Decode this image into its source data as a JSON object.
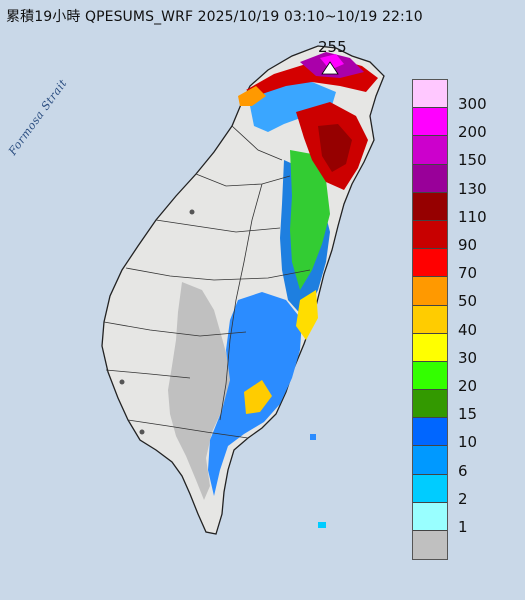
{
  "title": "累積19小時 QPESUMS_WRF 2025/10/19 03:10~10/19 22:10",
  "sea_label": "Formosa Strait",
  "max_value": "255",
  "legend": [
    {
      "label": "300",
      "color": "#ffc8ff"
    },
    {
      "label": "200",
      "color": "#ff00ff"
    },
    {
      "label": "150",
      "color": "#cc00cc"
    },
    {
      "label": "130",
      "color": "#990099"
    },
    {
      "label": "110",
      "color": "#960000"
    },
    {
      "label": "90",
      "color": "#c80000"
    },
    {
      "label": "70",
      "color": "#ff0000"
    },
    {
      "label": "50",
      "color": "#ff9900"
    },
    {
      "label": "40",
      "color": "#ffcc00"
    },
    {
      "label": "30",
      "color": "#ffff00"
    },
    {
      "label": "20",
      "color": "#33ff00"
    },
    {
      "label": "15",
      "color": "#339900"
    },
    {
      "label": "10",
      "color": "#0066ff"
    },
    {
      "label": "6",
      "color": "#0099ff"
    },
    {
      "label": "2",
      "color": "#00ccff"
    },
    {
      "label": "1",
      "color": "#99ffff"
    },
    {
      "label": "",
      "color": "#c0c0c0"
    }
  ],
  "colors": {
    "sea": "#c9d8e8",
    "land": "#e8e8e6",
    "outline": "#222222"
  }
}
